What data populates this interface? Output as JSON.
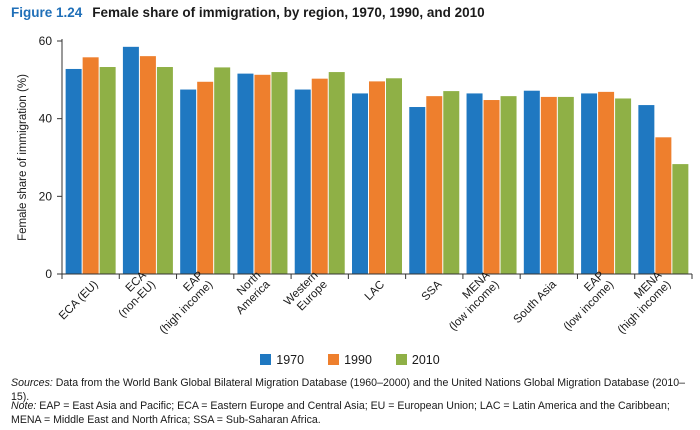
{
  "figure": {
    "number": "Figure 1.24",
    "title": "Female share of immigration, by region, 1970, 1990, and 2010"
  },
  "colors": {
    "1970": "#1f78c1",
    "1990": "#ee7f2d",
    "2010": "#8fb046"
  },
  "chart_data": {
    "type": "bar",
    "ylabel": "Female share of immigration (%)",
    "xlabel": "",
    "ylim": [
      0,
      60
    ],
    "yticks": [
      0,
      20,
      40,
      60
    ],
    "grid": false,
    "legend_position": "bottom",
    "categories": [
      [
        "ECA (EU)"
      ],
      [
        "ECA",
        "(non-EU)"
      ],
      [
        "EAP",
        "(high income)"
      ],
      [
        "North",
        "America"
      ],
      [
        "Western",
        "Europe"
      ],
      [
        "LAC"
      ],
      [
        "SSA"
      ],
      [
        "MENA",
        "(low income)"
      ],
      [
        "South Asia"
      ],
      [
        "EAP",
        "(low income)"
      ],
      [
        "MENA",
        "(high income)"
      ]
    ],
    "series": [
      {
        "name": "1970",
        "values": [
          52.8,
          58.5,
          47.5,
          51.6,
          47.5,
          46.5,
          43.0,
          46.5,
          47.2,
          46.5,
          43.5
        ]
      },
      {
        "name": "1990",
        "values": [
          55.8,
          56.1,
          49.5,
          51.3,
          50.3,
          49.6,
          45.8,
          44.8,
          45.6,
          46.9,
          35.2
        ]
      },
      {
        "name": "2010",
        "values": [
          53.3,
          53.3,
          53.2,
          52.0,
          52.0,
          50.4,
          47.1,
          45.8,
          45.6,
          45.2,
          28.3
        ]
      }
    ]
  },
  "sources": {
    "label": "Sources:",
    "text": " Data from the World Bank Global Bilateral Migration Database (1960–2000) and the United Nations Global Migration Database (2010–15)."
  },
  "note": {
    "label": "Note:",
    "text": " EAP = East Asia and Pacific; ECA = Eastern Europe and Central Asia; EU = European Union; LAC = Latin America and the Caribbean; MENA = Middle East and North Africa; SSA = Sub-Saharan Africa."
  }
}
